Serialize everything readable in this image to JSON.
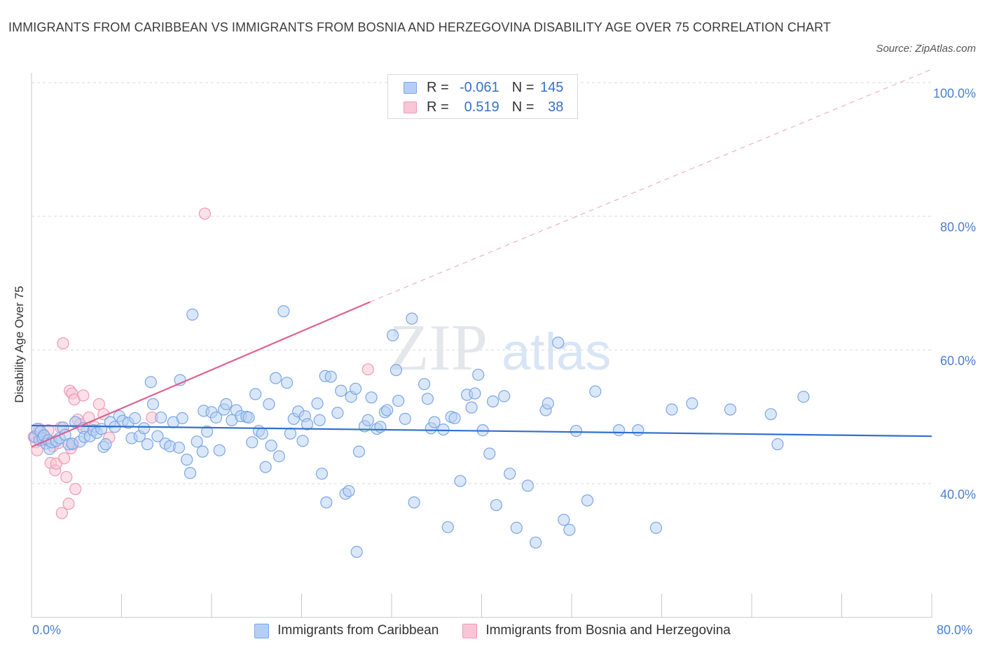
{
  "title": "IMMIGRANTS FROM CARIBBEAN VS IMMIGRANTS FROM BOSNIA AND HERZEGOVINA DISABILITY AGE OVER 75 CORRELATION CHART",
  "source": "Source: ZipAtlas.com",
  "watermark": {
    "zip": "ZIP",
    "atlas": "atlas"
  },
  "stats": {
    "r_label": "R =",
    "n_label": "N =",
    "caribbean": {
      "r": "-0.061",
      "n": "145"
    },
    "bosnia": {
      "r": "0.519",
      "n": "38"
    }
  },
  "colors": {
    "caribbean_fill": "#b5cff4",
    "caribbean_stroke": "#7aa7e6",
    "caribbean_line": "#2f6fcf",
    "bosnia_fill": "#f8c6d6",
    "bosnia_stroke": "#ee9ab6",
    "bosnia_line": "#e0608f",
    "tick_label": "#4a7fd0",
    "grid": "#d9d9d9"
  },
  "chart_data": {
    "type": "scatter",
    "title": "IMMIGRANTS FROM CARIBBEAN VS IMMIGRANTS FROM BOSNIA AND HERZEGOVINA DISABILITY AGE OVER 75 CORRELATION CHART",
    "xlabel": "",
    "ylabel": "Disability Age Over 75",
    "xlim": [
      0,
      80
    ],
    "ylim": [
      20,
      100
    ],
    "x_tick_labels": [
      "0.0%",
      "80.0%"
    ],
    "y_ticks": [
      40,
      60,
      80,
      100
    ],
    "y_tick_labels": [
      "40.0%",
      "60.0%",
      "80.0%",
      "100.0%"
    ],
    "legend": [
      "Immigrants from Caribbean",
      "Immigrants from Bosnia and Herzegovina"
    ],
    "series": [
      {
        "name": "Immigrants from Caribbean",
        "points": [
          [
            0.3,
            47.0
          ],
          [
            0.5,
            48.2
          ],
          [
            0.7,
            46.5
          ],
          [
            0.8,
            47.8
          ],
          [
            1.0,
            46.8
          ],
          [
            1.1,
            47.2
          ],
          [
            1.3,
            46.0
          ],
          [
            1.5,
            46.5
          ],
          [
            1.6,
            45.2
          ],
          [
            1.8,
            46.2
          ],
          [
            2.2,
            46.4
          ],
          [
            2.5,
            46.8
          ],
          [
            2.8,
            48.4
          ],
          [
            3.0,
            47.3
          ],
          [
            3.3,
            45.9
          ],
          [
            3.6,
            46.0
          ],
          [
            3.9,
            49.2
          ],
          [
            4.3,
            46.3
          ],
          [
            4.6,
            48.3
          ],
          [
            4.7,
            47.0
          ],
          [
            5.2,
            47.1
          ],
          [
            5.5,
            48.0
          ],
          [
            5.8,
            47.6
          ],
          [
            6.2,
            48.2
          ],
          [
            6.4,
            45.5
          ],
          [
            6.6,
            45.9
          ],
          [
            7.0,
            49.2
          ],
          [
            7.4,
            48.5
          ],
          [
            7.8,
            50.1
          ],
          [
            8.1,
            49.4
          ],
          [
            8.6,
            49.1
          ],
          [
            8.9,
            46.8
          ],
          [
            9.2,
            49.8
          ],
          [
            9.6,
            47.1
          ],
          [
            10.0,
            48.3
          ],
          [
            10.3,
            45.9
          ],
          [
            10.6,
            55.2
          ],
          [
            10.8,
            51.9
          ],
          [
            11.2,
            47.1
          ],
          [
            11.5,
            49.9
          ],
          [
            11.9,
            46.0
          ],
          [
            12.3,
            45.6
          ],
          [
            12.6,
            49.2
          ],
          [
            13.1,
            45.4
          ],
          [
            13.4,
            49.8
          ],
          [
            13.8,
            43.6
          ],
          [
            14.1,
            41.6
          ],
          [
            14.3,
            65.3
          ],
          [
            14.7,
            46.3
          ],
          [
            15.2,
            44.8
          ],
          [
            13.2,
            55.5
          ],
          [
            15.3,
            50.9
          ],
          [
            15.6,
            47.8
          ],
          [
            16.0,
            50.7
          ],
          [
            16.4,
            49.9
          ],
          [
            16.7,
            45.0
          ],
          [
            17.1,
            51.1
          ],
          [
            17.3,
            51.9
          ],
          [
            17.8,
            49.5
          ],
          [
            18.2,
            51.0
          ],
          [
            18.6,
            50.1
          ],
          [
            19.1,
            50.0
          ],
          [
            19.3,
            49.9
          ],
          [
            19.6,
            46.2
          ],
          [
            19.9,
            53.4
          ],
          [
            20.2,
            47.9
          ],
          [
            20.5,
            47.5
          ],
          [
            20.8,
            42.5
          ],
          [
            21.1,
            51.9
          ],
          [
            21.3,
            45.7
          ],
          [
            21.7,
            55.8
          ],
          [
            22.0,
            44.1
          ],
          [
            22.4,
            65.8
          ],
          [
            22.7,
            55.1
          ],
          [
            23.0,
            47.5
          ],
          [
            23.3,
            49.7
          ],
          [
            23.7,
            50.8
          ],
          [
            24.1,
            46.4
          ],
          [
            24.3,
            50.1
          ],
          [
            24.5,
            48.9
          ],
          [
            25.4,
            52.0
          ],
          [
            25.6,
            49.5
          ],
          [
            25.8,
            41.5
          ],
          [
            26.1,
            56.1
          ],
          [
            26.2,
            37.2
          ],
          [
            26.6,
            56.0
          ],
          [
            27.2,
            50.6
          ],
          [
            27.5,
            53.9
          ],
          [
            27.9,
            38.5
          ],
          [
            28.2,
            38.9
          ],
          [
            28.4,
            53.0
          ],
          [
            28.8,
            54.2
          ],
          [
            28.9,
            29.8
          ],
          [
            29.1,
            44.8
          ],
          [
            29.6,
            48.6
          ],
          [
            29.9,
            49.5
          ],
          [
            30.2,
            52.9
          ],
          [
            30.7,
            48.2
          ],
          [
            31.0,
            48.5
          ],
          [
            31.4,
            50.7
          ],
          [
            31.6,
            51.0
          ],
          [
            32.1,
            62.2
          ],
          [
            32.4,
            57.0
          ],
          [
            32.6,
            52.4
          ],
          [
            33.2,
            49.7
          ],
          [
            33.8,
            64.7
          ],
          [
            34.0,
            37.2
          ],
          [
            34.9,
            54.9
          ],
          [
            35.2,
            52.7
          ],
          [
            35.5,
            48.3
          ],
          [
            35.8,
            49.2
          ],
          [
            36.6,
            48.1
          ],
          [
            37.0,
            33.5
          ],
          [
            37.3,
            50.0
          ],
          [
            37.6,
            49.8
          ],
          [
            38.1,
            40.4
          ],
          [
            38.7,
            53.3
          ],
          [
            39.1,
            51.4
          ],
          [
            39.4,
            53.5
          ],
          [
            39.7,
            56.3
          ],
          [
            40.1,
            48.0
          ],
          [
            40.7,
            44.5
          ],
          [
            41.0,
            52.3
          ],
          [
            41.3,
            36.8
          ],
          [
            42.0,
            53.1
          ],
          [
            42.5,
            41.5
          ],
          [
            43.1,
            33.4
          ],
          [
            44.1,
            39.7
          ],
          [
            44.8,
            31.2
          ],
          [
            45.7,
            51.0
          ],
          [
            45.9,
            52.0
          ],
          [
            46.8,
            61.1
          ],
          [
            47.3,
            34.6
          ],
          [
            47.8,
            33.1
          ],
          [
            48.4,
            47.9
          ],
          [
            49.4,
            37.5
          ],
          [
            50.1,
            53.8
          ],
          [
            52.2,
            48.0
          ],
          [
            53.9,
            48.0
          ],
          [
            55.5,
            33.4
          ],
          [
            56.9,
            51.1
          ],
          [
            58.7,
            52.0
          ],
          [
            62.1,
            51.1
          ],
          [
            65.7,
            50.4
          ],
          [
            66.3,
            45.9
          ],
          [
            68.6,
            53.0
          ]
        ],
        "trend": {
          "x0": 0,
          "y0": 48.7,
          "x1": 80,
          "y1": 47.1
        }
      },
      {
        "name": "Immigrants from Bosnia and Herzegovina",
        "points": [
          [
            0.2,
            47.0
          ],
          [
            0.4,
            46.2
          ],
          [
            0.5,
            45.0
          ],
          [
            0.6,
            47.6
          ],
          [
            0.7,
            48.2
          ],
          [
            0.9,
            46.5
          ],
          [
            1.1,
            47.3
          ],
          [
            1.3,
            46.8
          ],
          [
            1.5,
            48.0
          ],
          [
            1.7,
            43.1
          ],
          [
            1.9,
            45.6
          ],
          [
            2.1,
            42.0
          ],
          [
            2.2,
            43.0
          ],
          [
            2.4,
            46.1
          ],
          [
            2.6,
            48.4
          ],
          [
            2.7,
            35.6
          ],
          [
            2.8,
            61.0
          ],
          [
            2.9,
            43.8
          ],
          [
            3.1,
            41.0
          ],
          [
            3.3,
            37.0
          ],
          [
            3.4,
            53.9
          ],
          [
            3.5,
            45.3
          ],
          [
            3.6,
            53.5
          ],
          [
            3.7,
            45.9
          ],
          [
            3.8,
            52.6
          ],
          [
            3.9,
            39.2
          ],
          [
            4.1,
            49.6
          ],
          [
            4.3,
            48.9
          ],
          [
            4.6,
            53.2
          ],
          [
            4.9,
            48.0
          ],
          [
            5.1,
            49.9
          ],
          [
            5.6,
            48.5
          ],
          [
            6.0,
            51.9
          ],
          [
            6.4,
            50.4
          ],
          [
            6.9,
            46.9
          ],
          [
            10.7,
            49.9
          ],
          [
            15.4,
            80.4
          ],
          [
            29.9,
            57.1
          ]
        ],
        "trend": {
          "x0": 0,
          "y0": 45.5,
          "x1": 30.1,
          "y1": 67.2
        },
        "trend_extended": {
          "x0": 30.1,
          "y0": 67.2,
          "x1": 80,
          "y1": 102.0
        }
      }
    ]
  }
}
